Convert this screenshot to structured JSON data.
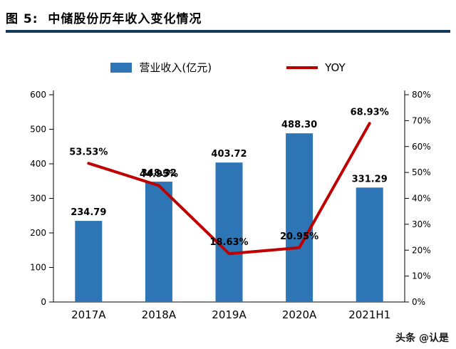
{
  "header": {
    "title": "图 5:  中储股份历年收入变化情况"
  },
  "legend": {
    "bar_label": "营业收入(亿元)",
    "line_label": "YOY"
  },
  "watermark": "头条 @认是",
  "colors": {
    "bar": "#2E75B6",
    "line": "#C00000",
    "divider": "#17375E",
    "axis": "#000000"
  },
  "chart_data": {
    "type": "combo",
    "categories": [
      "2017A",
      "2018A",
      "2019A",
      "2020A",
      "2021H1"
    ],
    "series": [
      {
        "name": "营业收入(亿元)",
        "type": "bar",
        "axis": "left",
        "values": [
          234.79,
          348.32,
          403.72,
          488.3,
          331.29
        ],
        "color": "#2E75B6"
      },
      {
        "name": "YOY",
        "type": "line",
        "axis": "right",
        "values": [
          53.53,
          44.95,
          18.63,
          20.95,
          68.93
        ],
        "color": "#C00000"
      }
    ],
    "bar_labels": [
      "234.79",
      "348.32",
      "403.72",
      "488.30",
      "331.29"
    ],
    "line_labels": [
      "53.53%",
      "44.95%",
      "18.63%",
      "20.95%",
      "68.93%"
    ],
    "left_axis": {
      "min": 0,
      "max": 600,
      "step": 100,
      "ticks": [
        "0",
        "100",
        "200",
        "300",
        "400",
        "500",
        "600"
      ]
    },
    "right_axis": {
      "min": 0,
      "max": 80,
      "step": 10,
      "ticks": [
        "0%",
        "10%",
        "20%",
        "30%",
        "40%",
        "50%",
        "60%",
        "70%",
        "80%"
      ]
    },
    "grid": false,
    "legend_position": "top"
  }
}
